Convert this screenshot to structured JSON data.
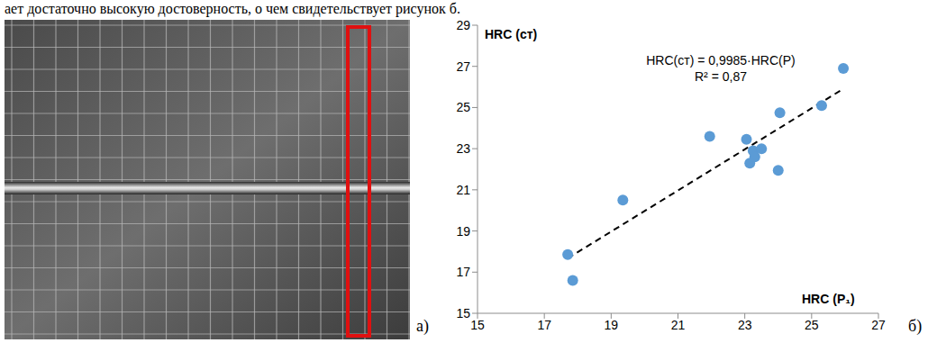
{
  "text": "ает достаточно высокую достоверность, о чем свидетельствует рисунок б.",
  "panel_labels": [
    "а)",
    "б)"
  ],
  "chart_data": {
    "type": "scatter",
    "x_label": "HRC (P₁)",
    "y_label": "HRC (ст)",
    "annotations": [
      "HRC(ст) = 0,9985·HRC(Р)",
      "R² = 0,87"
    ],
    "x": [
      17.7,
      17.85,
      19.35,
      21.95,
      23.05,
      23.15,
      23.25,
      23.3,
      23.5,
      24.0,
      24.05,
      25.3,
      25.95
    ],
    "values": [
      17.85,
      16.6,
      20.5,
      23.6,
      23.45,
      22.3,
      22.9,
      22.6,
      23.0,
      21.95,
      24.75,
      25.1,
      26.9
    ],
    "color": "#5b9bd5",
    "marker": "circle",
    "xlim": [
      15,
      27
    ],
    "ylim": [
      15,
      29
    ],
    "xticks": [
      15,
      17,
      19,
      21,
      23,
      25,
      27
    ],
    "yticks": [
      15,
      17,
      19,
      21,
      23,
      25,
      27,
      29
    ],
    "grid": false,
    "trendline": {
      "slope": 0.9985,
      "x": [
        17.7,
        25.95
      ],
      "color": "#000000",
      "line_style": "dashed"
    }
  }
}
